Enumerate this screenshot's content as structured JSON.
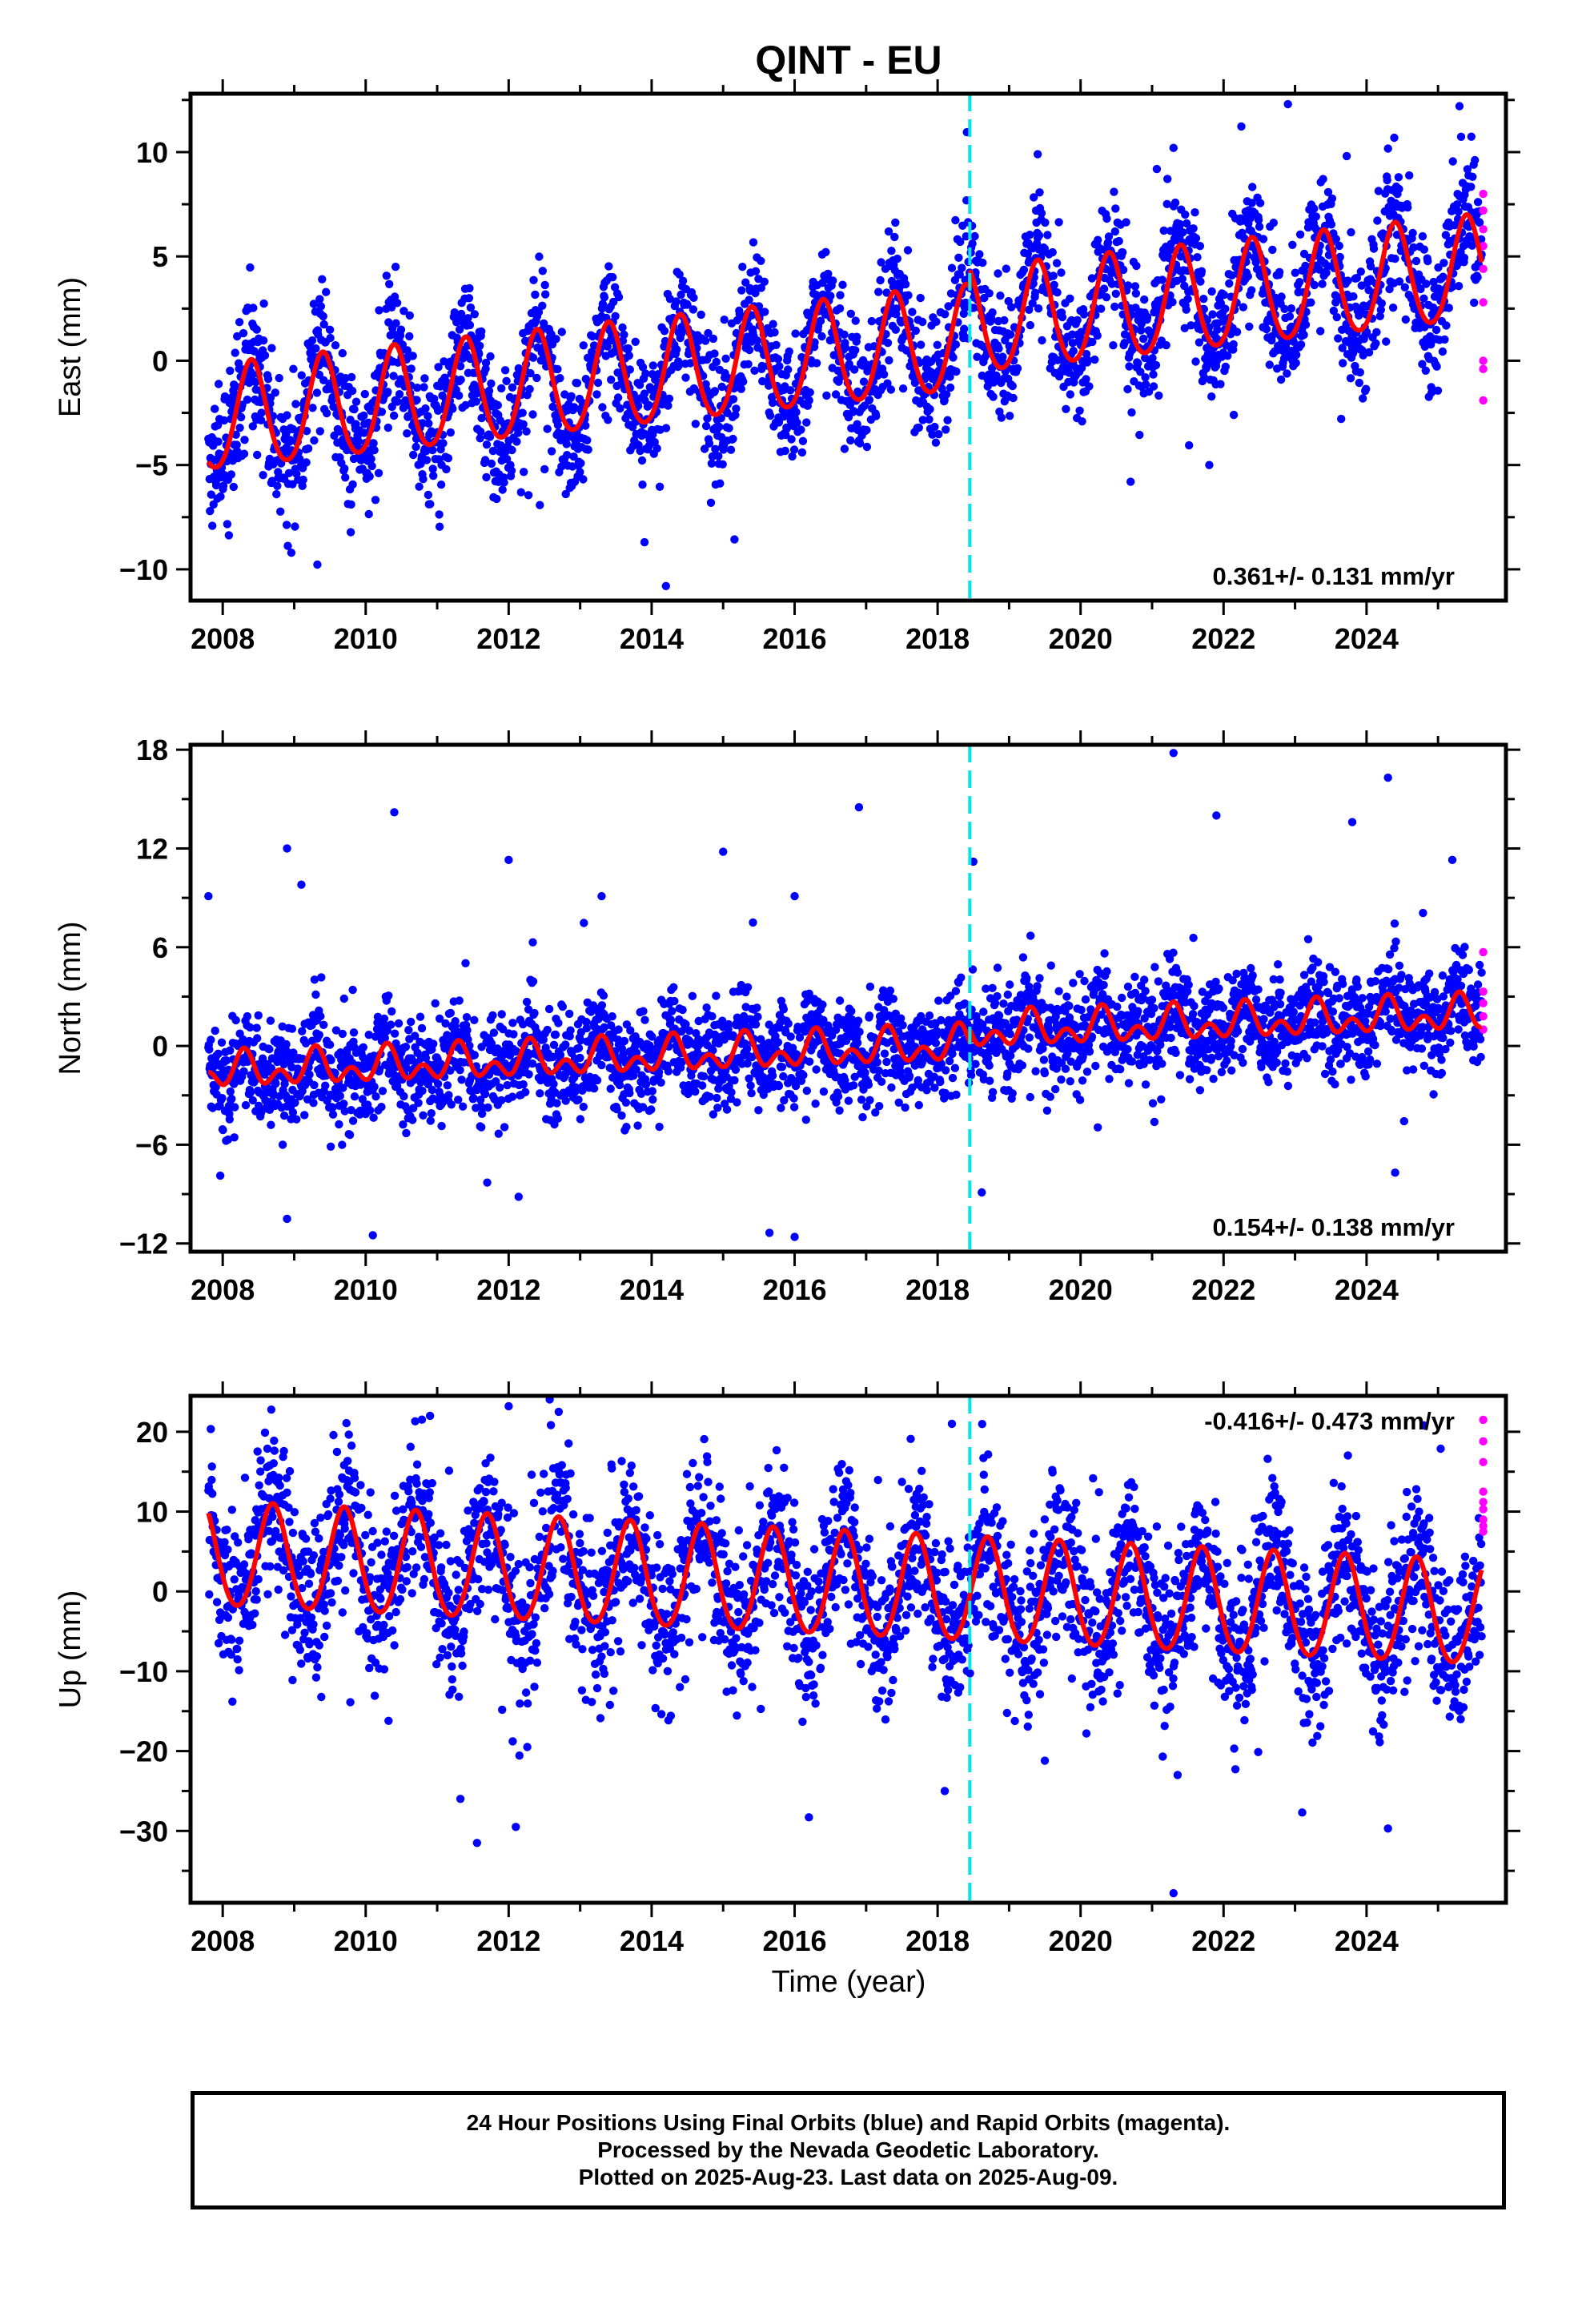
{
  "title": "QINT - EU",
  "xlabel": "Time (year)",
  "caption": {
    "line1": "24 Hour Positions Using Final Orbits (blue) and Rapid Orbits (magenta).",
    "line2": "Processed by the Nevada Geodetic Laboratory.",
    "line3": "Plotted on 2025-Aug-23. Last data on 2025-Aug-09."
  },
  "colors": {
    "final_orbits": "#0000ff",
    "rapid_orbits": "#ff00ff",
    "model_fit": "#ff0000",
    "event_line": "#00e5ee"
  },
  "chart_data": [
    {
      "type": "scatter",
      "panel": "east",
      "ylabel": "East (mm)",
      "xlim": [
        2007.55,
        2025.95
      ],
      "ylim": [
        -11.5,
        12.8
      ],
      "xticks": [
        2008,
        2010,
        2012,
        2014,
        2016,
        2018,
        2020,
        2022,
        2024
      ],
      "yticks": [
        -10,
        -5,
        0,
        5,
        10
      ],
      "data_start": 2007.8,
      "data_end": 2025.61,
      "event_line_x": 2018.45,
      "rate_label": "0.361+/- 0.131 mm/yr",
      "rate_label_position": "bottom-right",
      "model": {
        "trend": [
          -2.9,
          0.361
        ],
        "annual_amp": 2.5,
        "annual_peak": 0.4,
        "semiannual_amp": 0.25,
        "offset_at_event": 0.8
      },
      "scatter_sigma": 1.6,
      "rapid_orbit_values": [
        8.0,
        7.2,
        6.3,
        5.5,
        4.4,
        2.8,
        0.0,
        -0.4,
        -1.9
      ],
      "outliers": [
        [
          2014.2,
          -10.8
        ],
        [
          2013.9,
          -8.7
        ],
        [
          2019.4,
          9.9
        ],
        [
          2021.3,
          10.2
        ],
        [
          2022.9,
          12.3
        ],
        [
          2025.3,
          12.2
        ],
        [
          2020.7,
          -5.8
        ],
        [
          2021.8,
          -5.0
        ]
      ]
    },
    {
      "type": "scatter",
      "panel": "north",
      "ylabel": "North (mm)",
      "xlim": [
        2007.55,
        2025.95
      ],
      "ylim": [
        -12.5,
        18.3
      ],
      "xticks": [
        2008,
        2010,
        2012,
        2014,
        2016,
        2018,
        2020,
        2022,
        2024
      ],
      "yticks": [
        -12,
        -6,
        0,
        6,
        12,
        18
      ],
      "data_start": 2007.8,
      "data_end": 2025.61,
      "event_line_x": 2018.45,
      "rate_label": "0.154+/- 0.138 mm/yr",
      "rate_label_position": "bottom-right",
      "model": {
        "trend": [
          -1.6,
          0.154
        ],
        "annual_amp": 0.7,
        "annual_peak": 0.3,
        "semiannual_amp": 0.7,
        "offset_at_event": 0.8
      },
      "scatter_sigma": 1.5,
      "rapid_orbit_values": [
        5.7,
        3.3,
        2.6,
        1.8,
        1.0
      ],
      "outliers": [
        [
          2007.8,
          9.1
        ],
        [
          2008.9,
          12.0
        ],
        [
          2009.1,
          9.8
        ],
        [
          2010.4,
          14.2
        ],
        [
          2012.0,
          11.3
        ],
        [
          2013.3,
          9.1
        ],
        [
          2015.0,
          11.8
        ],
        [
          2016.0,
          9.1
        ],
        [
          2016.9,
          14.5
        ],
        [
          2018.5,
          11.2
        ],
        [
          2021.3,
          17.8
        ],
        [
          2021.9,
          14.0
        ],
        [
          2023.8,
          13.6
        ],
        [
          2024.3,
          16.3
        ],
        [
          2025.2,
          11.3
        ],
        [
          2008.9,
          -10.5
        ],
        [
          2010.1,
          -11.5
        ],
        [
          2016.0,
          -11.6
        ],
        [
          2011.7,
          -8.3
        ],
        [
          2024.4,
          -7.7
        ]
      ]
    },
    {
      "type": "scatter",
      "panel": "up",
      "ylabel": "Up (mm)",
      "xlim": [
        2007.55,
        2025.95
      ],
      "ylim": [
        -39,
        24.5
      ],
      "xticks": [
        2008,
        2010,
        2012,
        2014,
        2016,
        2018,
        2020,
        2022,
        2024
      ],
      "yticks": [
        -30,
        -20,
        -10,
        0,
        10,
        20
      ],
      "data_start": 2007.8,
      "data_end": 2025.61,
      "event_line_x": 2018.45,
      "rate_label": "-0.416+/- 0.473 mm/yr",
      "rate_label_position": "top-right",
      "model": {
        "trend": [
          4.4,
          -0.416
        ],
        "annual_amp": 6.5,
        "annual_peak": 0.7,
        "semiannual_amp": 0.5,
        "offset_at_event": 0.0
      },
      "scatter_sigma": 5.0,
      "rapid_orbit_values": [
        21.5,
        18.8,
        16.2,
        12.5,
        11.2,
        10.3,
        9.0,
        8.2,
        7.5
      ],
      "outliers": [
        [
          2012.1,
          -29.5
        ],
        [
          2016.2,
          -28.3
        ],
        [
          2021.3,
          -37.8
        ],
        [
          2023.1,
          -27.7
        ],
        [
          2024.3,
          -29.7
        ],
        [
          2012.0,
          23.2
        ],
        [
          2012.7,
          22.5
        ],
        [
          2018.2,
          21.0
        ],
        [
          2010.9,
          22.0
        ],
        [
          2024.8,
          20.8
        ],
        [
          2018.1,
          -25.0
        ],
        [
          2019.5,
          -21.2
        ]
      ]
    }
  ]
}
